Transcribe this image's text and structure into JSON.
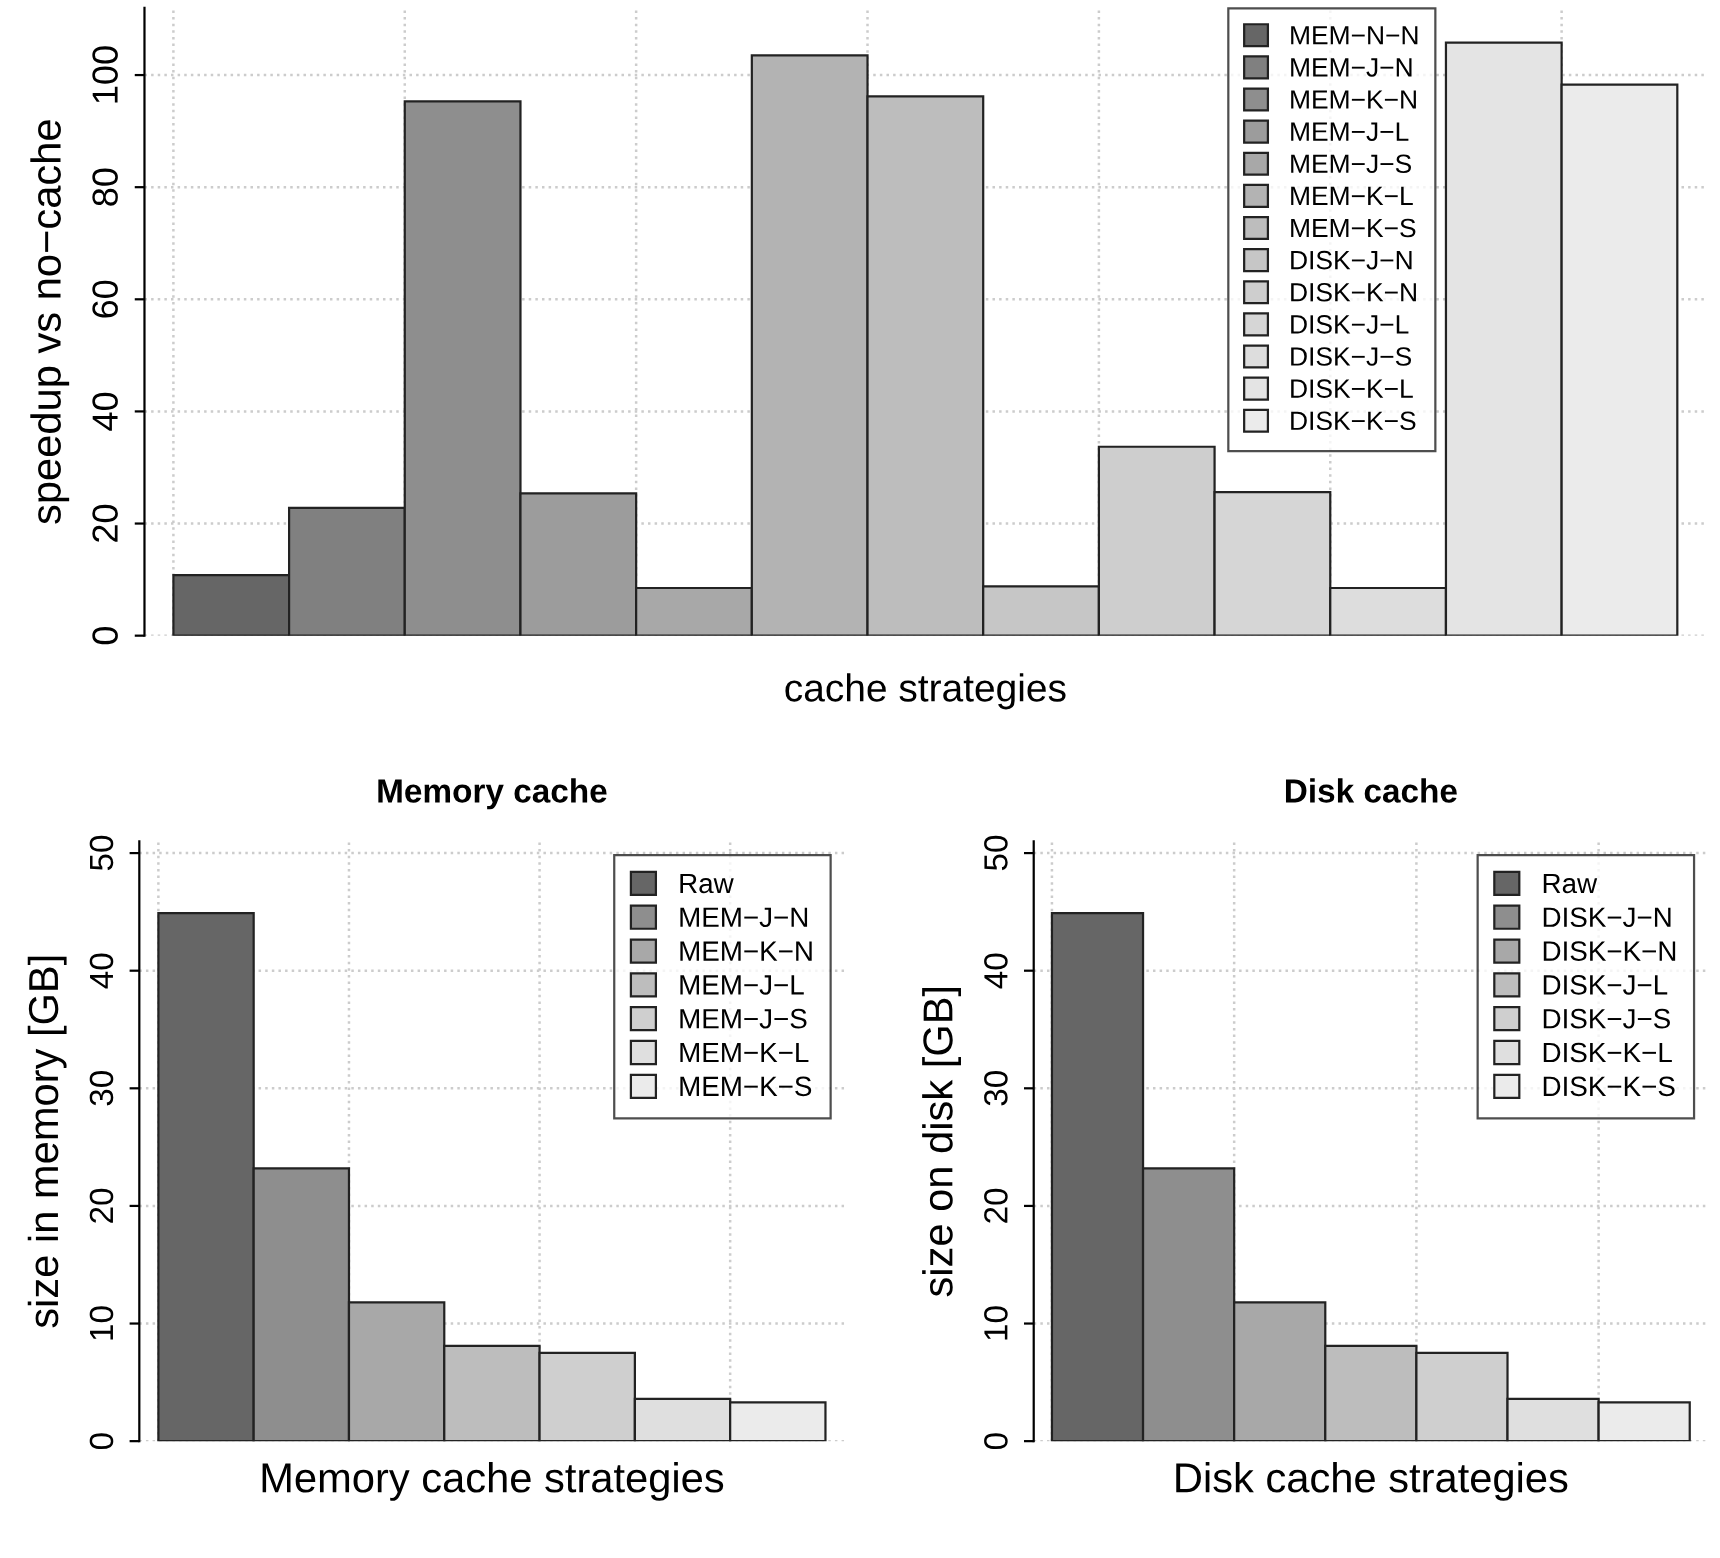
{
  "chart_data": [
    {
      "type": "bar",
      "xlabel": "cache strategies",
      "ylabel": "speedup vs no−cache",
      "categories": [
        null,
        null,
        null,
        null,
        null,
        null,
        null,
        null,
        null,
        null,
        null,
        null,
        null
      ],
      "ylim": [
        0,
        112
      ],
      "yticks": [
        0,
        20,
        40,
        60,
        80,
        100
      ],
      "grid": true,
      "legend": "top right",
      "series": [
        {
          "name": "MEM−N−N",
          "color": "#666666",
          "values": [
            10.8,
            null,
            null,
            null,
            null,
            null,
            null,
            null,
            null,
            null,
            null,
            null,
            null
          ]
        },
        {
          "name": "MEM−J−N",
          "color": "#808080",
          "values": [
            null,
            22.8,
            null,
            null,
            null,
            null,
            null,
            null,
            null,
            null,
            null,
            null,
            null
          ]
        },
        {
          "name": "MEM−K−N",
          "color": "#8e8e8e",
          "values": [
            null,
            null,
            95.3,
            null,
            null,
            null,
            null,
            null,
            null,
            null,
            null,
            null,
            null
          ]
        },
        {
          "name": "MEM−J−L",
          "color": "#9c9c9c",
          "values": [
            null,
            null,
            null,
            25.4,
            null,
            null,
            null,
            null,
            null,
            null,
            null,
            null,
            null
          ]
        },
        {
          "name": "MEM−J−S",
          "color": "#a8a8a8",
          "values": [
            null,
            null,
            null,
            null,
            8.5,
            null,
            null,
            null,
            null,
            null,
            null,
            null,
            null
          ]
        },
        {
          "name": "MEM−K−L",
          "color": "#b3b3b3",
          "values": [
            null,
            null,
            null,
            null,
            null,
            103.5,
            null,
            null,
            null,
            null,
            null,
            null,
            null
          ]
        },
        {
          "name": "MEM−K−S",
          "color": "#bdbdbd",
          "values": [
            null,
            null,
            null,
            null,
            null,
            null,
            96.2,
            null,
            null,
            null,
            null,
            null,
            null
          ]
        },
        {
          "name": "DISK−J−N",
          "color": "#c6c6c6",
          "values": [
            null,
            null,
            null,
            null,
            null,
            null,
            null,
            8.8,
            null,
            null,
            null,
            null,
            null
          ]
        },
        {
          "name": "DISK−K−N",
          "color": "#cecece",
          "values": [
            null,
            null,
            null,
            null,
            null,
            null,
            null,
            null,
            33.7,
            null,
            null,
            null,
            null
          ]
        },
        {
          "name": "DISK−J−L",
          "color": "#d6d6d6",
          "values": [
            null,
            null,
            null,
            null,
            null,
            null,
            null,
            null,
            null,
            25.6,
            null,
            null,
            null
          ]
        },
        {
          "name": "DISK−J−S",
          "color": "#dddddd",
          "values": [
            null,
            null,
            null,
            null,
            null,
            null,
            null,
            null,
            null,
            null,
            8.5,
            null,
            null
          ]
        },
        {
          "name": "DISK−K−L",
          "color": "#e4e4e4",
          "values": [
            null,
            null,
            null,
            null,
            null,
            null,
            null,
            null,
            null,
            null,
            null,
            105.8,
            null
          ]
        },
        {
          "name": "DISK−K−S",
          "color": "#ebebeb",
          "values": [
            null,
            null,
            null,
            null,
            null,
            null,
            null,
            null,
            null,
            null,
            null,
            null,
            98.3
          ]
        }
      ]
    },
    {
      "type": "bar",
      "title": "Memory cache",
      "xlabel": "Memory cache strategies",
      "ylabel": "size in memory [GB]",
      "categories": [
        null,
        null,
        null,
        null,
        null,
        null,
        null
      ],
      "ylim": [
        0,
        51
      ],
      "yticks": [
        0,
        10,
        20,
        30,
        40,
        50
      ],
      "grid": true,
      "legend": "top right",
      "series": [
        {
          "name": "Raw",
          "color": "#666666",
          "values": [
            44.9,
            null,
            null,
            null,
            null,
            null,
            null
          ]
        },
        {
          "name": "MEM−J−N",
          "color": "#8e8e8e",
          "values": [
            null,
            23.2,
            null,
            null,
            null,
            null,
            null
          ]
        },
        {
          "name": "MEM−K−N",
          "color": "#a8a8a8",
          "values": [
            null,
            null,
            11.8,
            null,
            null,
            null,
            null
          ]
        },
        {
          "name": "MEM−J−L",
          "color": "#bdbdbd",
          "values": [
            null,
            null,
            null,
            8.1,
            null,
            null,
            null
          ]
        },
        {
          "name": "MEM−J−S",
          "color": "#cfcfcf",
          "values": [
            null,
            null,
            null,
            null,
            7.5,
            null,
            null
          ]
        },
        {
          "name": "MEM−K−L",
          "color": "#dfdfdf",
          "values": [
            null,
            null,
            null,
            null,
            null,
            3.6,
            null
          ]
        },
        {
          "name": "MEM−K−S",
          "color": "#ebebeb",
          "values": [
            null,
            null,
            null,
            null,
            null,
            null,
            3.3
          ]
        }
      ]
    },
    {
      "type": "bar",
      "title": "Disk cache",
      "xlabel": "Disk cache strategies",
      "ylabel": "size on disk [GB]",
      "categories": [
        null,
        null,
        null,
        null,
        null,
        null,
        null
      ],
      "ylim": [
        0,
        51
      ],
      "yticks": [
        0,
        10,
        20,
        30,
        40,
        50
      ],
      "grid": true,
      "legend": "top right",
      "series": [
        {
          "name": "Raw",
          "color": "#666666",
          "values": [
            44.9,
            null,
            null,
            null,
            null,
            null,
            null
          ]
        },
        {
          "name": "DISK−J−N",
          "color": "#8e8e8e",
          "values": [
            null,
            23.2,
            null,
            null,
            null,
            null,
            null
          ]
        },
        {
          "name": "DISK−K−N",
          "color": "#a8a8a8",
          "values": [
            null,
            null,
            11.8,
            null,
            null,
            null,
            null
          ]
        },
        {
          "name": "DISK−J−L",
          "color": "#bdbdbd",
          "values": [
            null,
            null,
            null,
            8.1,
            null,
            null,
            null
          ]
        },
        {
          "name": "DISK−J−S",
          "color": "#cfcfcf",
          "values": [
            null,
            null,
            null,
            null,
            7.5,
            null,
            null
          ]
        },
        {
          "name": "DISK−K−L",
          "color": "#dfdfdf",
          "values": [
            null,
            null,
            null,
            null,
            null,
            3.6,
            null
          ]
        },
        {
          "name": "DISK−K−S",
          "color": "#ebebeb",
          "values": [
            null,
            null,
            null,
            null,
            null,
            null,
            3.3
          ]
        }
      ]
    }
  ]
}
